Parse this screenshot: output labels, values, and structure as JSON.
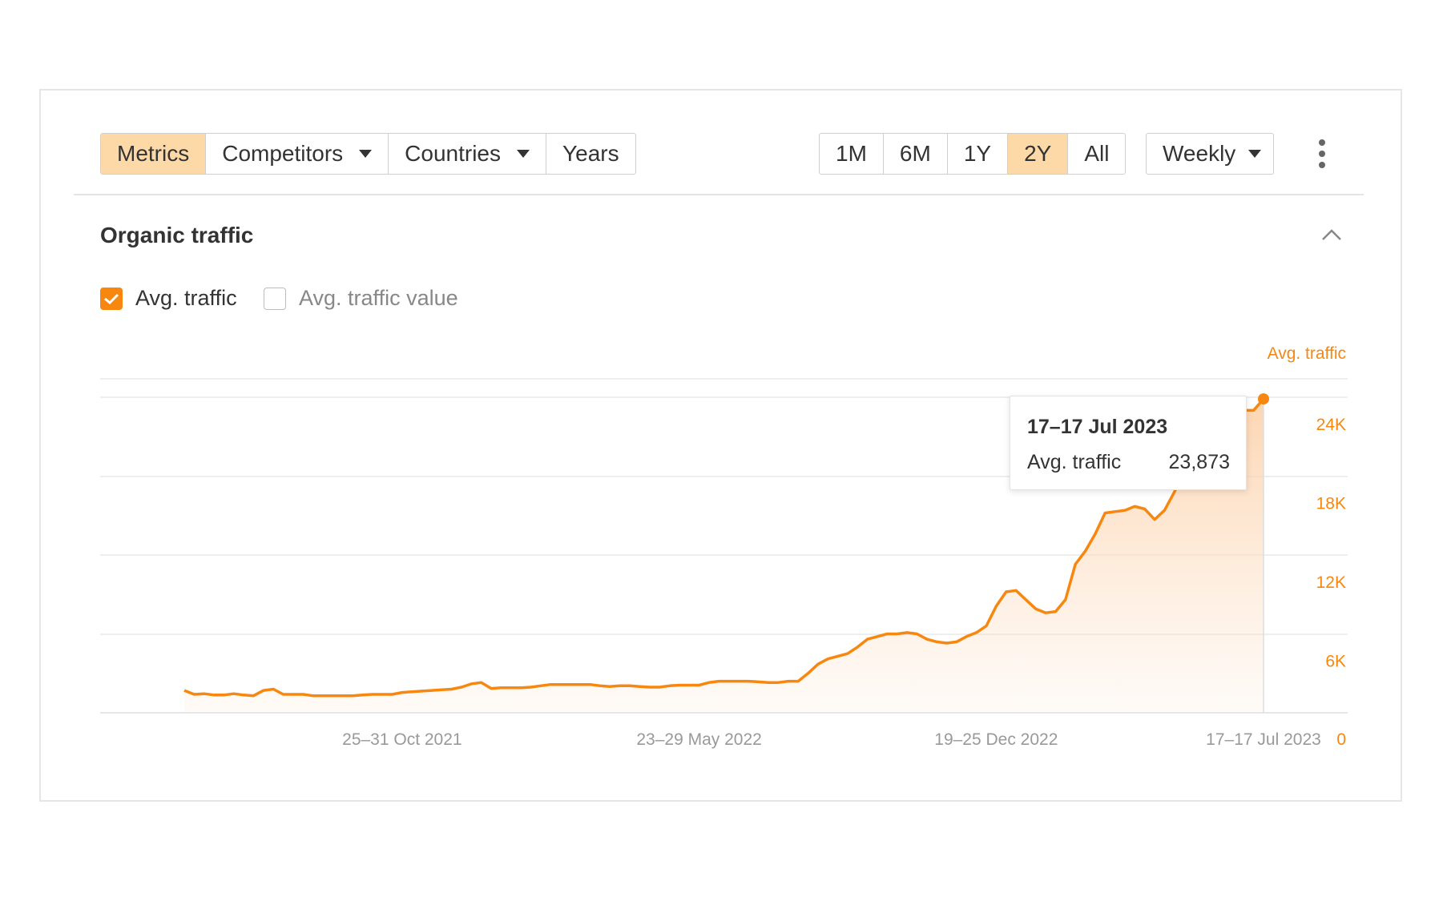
{
  "toolbar": {
    "view_tabs": [
      {
        "label": "Metrics",
        "active": true
      },
      {
        "label": "Competitors",
        "dropdown": true
      },
      {
        "label": "Countries",
        "dropdown": true
      },
      {
        "label": "Years"
      }
    ],
    "ranges": [
      {
        "label": "1M"
      },
      {
        "label": "6M"
      },
      {
        "label": "1Y"
      },
      {
        "label": "2Y",
        "active": true
      },
      {
        "label": "All"
      }
    ],
    "granularity": "Weekly",
    "more_icon": "kebab-vertical-icon"
  },
  "section": {
    "title": "Organic traffic",
    "collapse_icon": "chevron-up-icon"
  },
  "metrics": [
    {
      "label": "Avg. traffic",
      "checked": true
    },
    {
      "label": "Avg. traffic value",
      "checked": false
    }
  ],
  "tooltip": {
    "date": "17–17 Jul 2023",
    "label": "Avg. traffic",
    "value": "23,873"
  },
  "colors": {
    "accent": "#f7870f",
    "active_tab_bg": "#fdd9a8",
    "grid": "#e6e6e6",
    "axis_text": "#999999"
  },
  "chart_data": {
    "type": "area",
    "series": [
      {
        "name": "Avg. traffic",
        "color": "#f7870f",
        "values": [
          1700,
          1400,
          1450,
          1350,
          1350,
          1450,
          1350,
          1300,
          1700,
          1800,
          1400,
          1400,
          1400,
          1300,
          1300,
          1300,
          1300,
          1300,
          1350,
          1400,
          1400,
          1400,
          1550,
          1600,
          1650,
          1700,
          1750,
          1800,
          1950,
          2200,
          2300,
          1850,
          1900,
          1900,
          1900,
          1950,
          2050,
          2150,
          2150,
          2150,
          2150,
          2150,
          2050,
          2000,
          2050,
          2050,
          2000,
          1950,
          1950,
          2050,
          2100,
          2100,
          2100,
          2300,
          2400,
          2400,
          2400,
          2400,
          2350,
          2300,
          2300,
          2400,
          2400,
          3000,
          3700,
          4100,
          4300,
          4500,
          5000,
          5600,
          5800,
          6000,
          6000,
          6100,
          6000,
          5600,
          5400,
          5300,
          5400,
          5800,
          6100,
          6600,
          8100,
          9200,
          9300,
          8600,
          7900,
          7600,
          7700,
          8600,
          11300,
          12300,
          13600,
          15200,
          15300,
          15400,
          15700,
          15500,
          14700,
          15400,
          16800,
          18300,
          19000,
          19800,
          20800,
          21500,
          22500,
          23000,
          23000,
          23873
        ]
      }
    ],
    "x_ticks": [
      "25–31 Oct 2021",
      "23–29 May 2022",
      "19–25 Dec 2022",
      "17–17 Jul 2023"
    ],
    "x_tick_positions": [
      22,
      52,
      82,
      109
    ],
    "y_ticks": [
      "0",
      "6K",
      "12K",
      "18K",
      "24K"
    ],
    "y_tick_values": [
      0,
      6000,
      12000,
      18000,
      24000
    ],
    "ylim": [
      0,
      24000
    ],
    "y_axis_title": "Avg. traffic",
    "y_axis_side": "right",
    "grid": true,
    "highlight_index": 109
  }
}
